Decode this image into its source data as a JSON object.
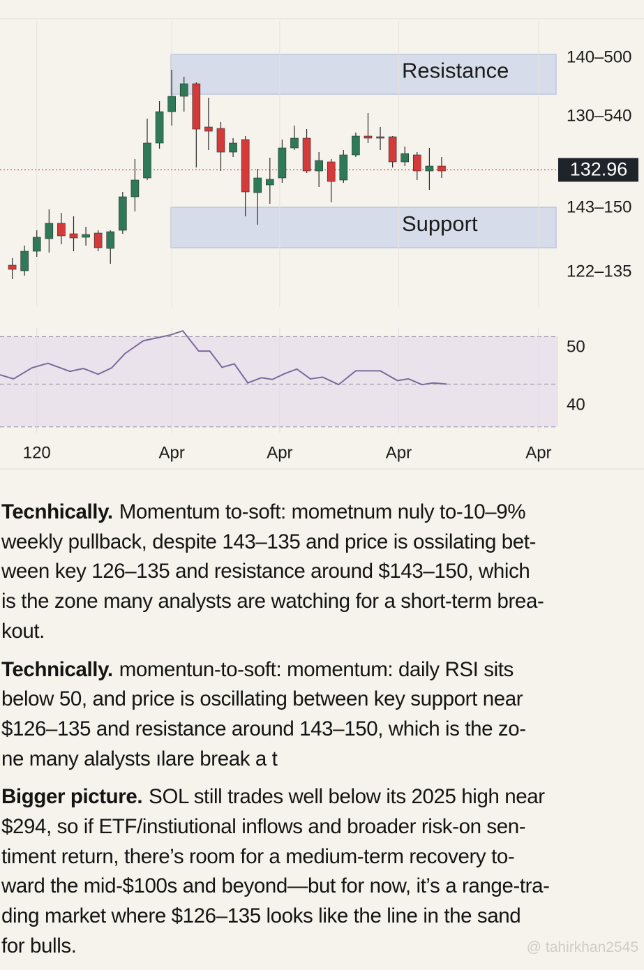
{
  "chart_data": [
    {
      "type": "candlestick",
      "x": [
        1,
        2,
        3,
        4,
        5,
        6,
        7,
        8,
        9,
        10,
        11,
        12,
        13,
        14,
        15,
        16,
        17,
        18,
        19,
        20,
        21,
        22,
        23,
        24,
        25,
        26,
        27,
        28,
        29,
        30,
        31,
        32,
        33,
        34,
        35,
        36
      ],
      "open": [
        119.3,
        118.5,
        121.3,
        123.1,
        125.3,
        123.8,
        123.3,
        123.9,
        121.7,
        124.3,
        129.1,
        131.8,
        136.8,
        141.3,
        143.5,
        145.3,
        139.1,
        138.9,
        135.5,
        137.3,
        129.7,
        130.8,
        131.8,
        136.1,
        137.5,
        132.8,
        134.1,
        131.5,
        135.1,
        137.8,
        137.7,
        137.7,
        134.1,
        135.1,
        132.8,
        133.5
      ],
      "high": [
        120.3,
        122.1,
        124.3,
        127.3,
        126.8,
        126.3,
        124.8,
        124.3,
        124.3,
        129.8,
        134.5,
        140.3,
        142.8,
        147.3,
        146.3,
        145.5,
        143.3,
        139.8,
        137.5,
        137.8,
        133.1,
        134.7,
        137.3,
        139.3,
        138.8,
        135.5,
        134.5,
        135.8,
        138.3,
        141.1,
        139.1,
        137.8,
        136.3,
        135.5,
        136.1,
        134.8
      ],
      "low": [
        117.3,
        117.8,
        120.5,
        121.1,
        122.3,
        121.3,
        122.1,
        121.3,
        119.5,
        123.8,
        127.0,
        131.5,
        136.0,
        139.3,
        141.3,
        133.3,
        135.8,
        132.8,
        134.8,
        126.3,
        125.1,
        128.1,
        131.1,
        135.8,
        132.5,
        130.5,
        128.3,
        131.1,
        134.8,
        136.8,
        135.8,
        133.3,
        133.5,
        131.5,
        130.1,
        131.8
      ],
      "close": [
        118.7,
        121.3,
        123.3,
        125.3,
        123.5,
        123.2,
        123.7,
        121.8,
        124.1,
        129.1,
        131.5,
        136.8,
        141.3,
        143.5,
        145.3,
        138.8,
        138.5,
        135.5,
        136.8,
        129.8,
        131.8,
        131.6,
        136.1,
        137.5,
        132.8,
        134.3,
        131.3,
        135.1,
        137.8,
        137.5,
        137.5,
        134.1,
        135.3,
        132.8,
        133.5,
        132.8
      ],
      "xlim": [
        0,
        45.5
      ],
      "ylim": [
        113.3,
        155.3
      ],
      "yticks": [
        {
          "value": 149,
          "label": "140–500"
        },
        {
          "value": 140.6,
          "label": "130–540"
        },
        {
          "value": 127.5,
          "label": "143–150"
        },
        {
          "value": 118.3,
          "label": "122–135"
        }
      ],
      "last_price": 132.96,
      "zones": [
        {
          "label": "Resistance",
          "low": 143.8,
          "high": 149.5
        },
        {
          "label": "Support",
          "low": 121.8,
          "high": 127.6
        }
      ],
      "up_color": "#2e7a58",
      "down_color": "#d43a3a"
    },
    {
      "type": "line",
      "x": [
        0,
        1.1,
        2.6,
        3.9,
        5.7,
        6.8,
        8.0,
        9.1,
        10.2,
        11.7,
        12.8,
        13.9,
        14.9,
        16.2,
        17.1,
        18.1,
        19.1,
        20.2,
        21.3,
        22.2,
        23.2,
        24.2,
        25.3,
        26.3,
        27.6,
        29.0,
        31.0,
        32.4,
        33.3,
        34.4,
        35.3,
        36.4
      ],
      "values": [
        45.3,
        44.6,
        46.5,
        47.3,
        45.9,
        46.4,
        45.4,
        46.5,
        49.0,
        51.2,
        51.7,
        52.2,
        52.9,
        49.4,
        49.4,
        46.6,
        47.2,
        43.9,
        44.8,
        44.5,
        45.5,
        46.3,
        44.6,
        44.9,
        43.6,
        46.0,
        46.0,
        44.3,
        44.6,
        43.6,
        43.9,
        43.7
      ],
      "xlim": [
        0,
        45.5
      ],
      "ylim": [
        35.3,
        53.4
      ],
      "yticks": [
        50,
        40
      ],
      "xticks": [
        {
          "value": 3,
          "label": "120"
        },
        {
          "value": 14,
          "label": "Apr"
        },
        {
          "value": 22.8,
          "label": "Apr"
        },
        {
          "value": 32.5,
          "label": "Apr"
        },
        {
          "value": 43.9,
          "label": "Apr"
        }
      ],
      "band": [
        36.3,
        51.9
      ],
      "dashed_lines": [
        51.9,
        43.7,
        36.3
      ],
      "color": "#7a6a9c"
    }
  ],
  "paragraphs": [
    {
      "lead": "Tecnhically.",
      "lines": [
        "Momentum to-soft: mometnum nuly to-10–9%",
        "weekly pullback, despite 143–135 and price is ossilating bet-",
        "ween key 126–135 and resistance around $143–150, which",
        "is the zone many analysts are watching for a short-term brea-",
        "kout."
      ]
    },
    {
      "lead": "Technically.",
      "lines": [
        "momentun-to-soft: momentum: daily RSI sits",
        "below 50, and price is oscillating between key support near",
        "$126–135 and resistance around 143–150, which is the zo-",
        "ne many alalysts ılare break a t"
      ]
    },
    {
      "lead": "Bigger picture.",
      "lines": [
        "SOL still trades well below its 2025 high near",
        "$294, so if ETF/instiutional inflows and broader risk-on sen-",
        "timent return, there’s room for a medium-term recovery to-",
        "ward the mid-$100s and beyond—but for now, it’s a range-tra-",
        "ding market where $126–135 looks like the line in the sand",
        "for bulls."
      ]
    }
  ],
  "watermark": "@ tahirkhan2545"
}
